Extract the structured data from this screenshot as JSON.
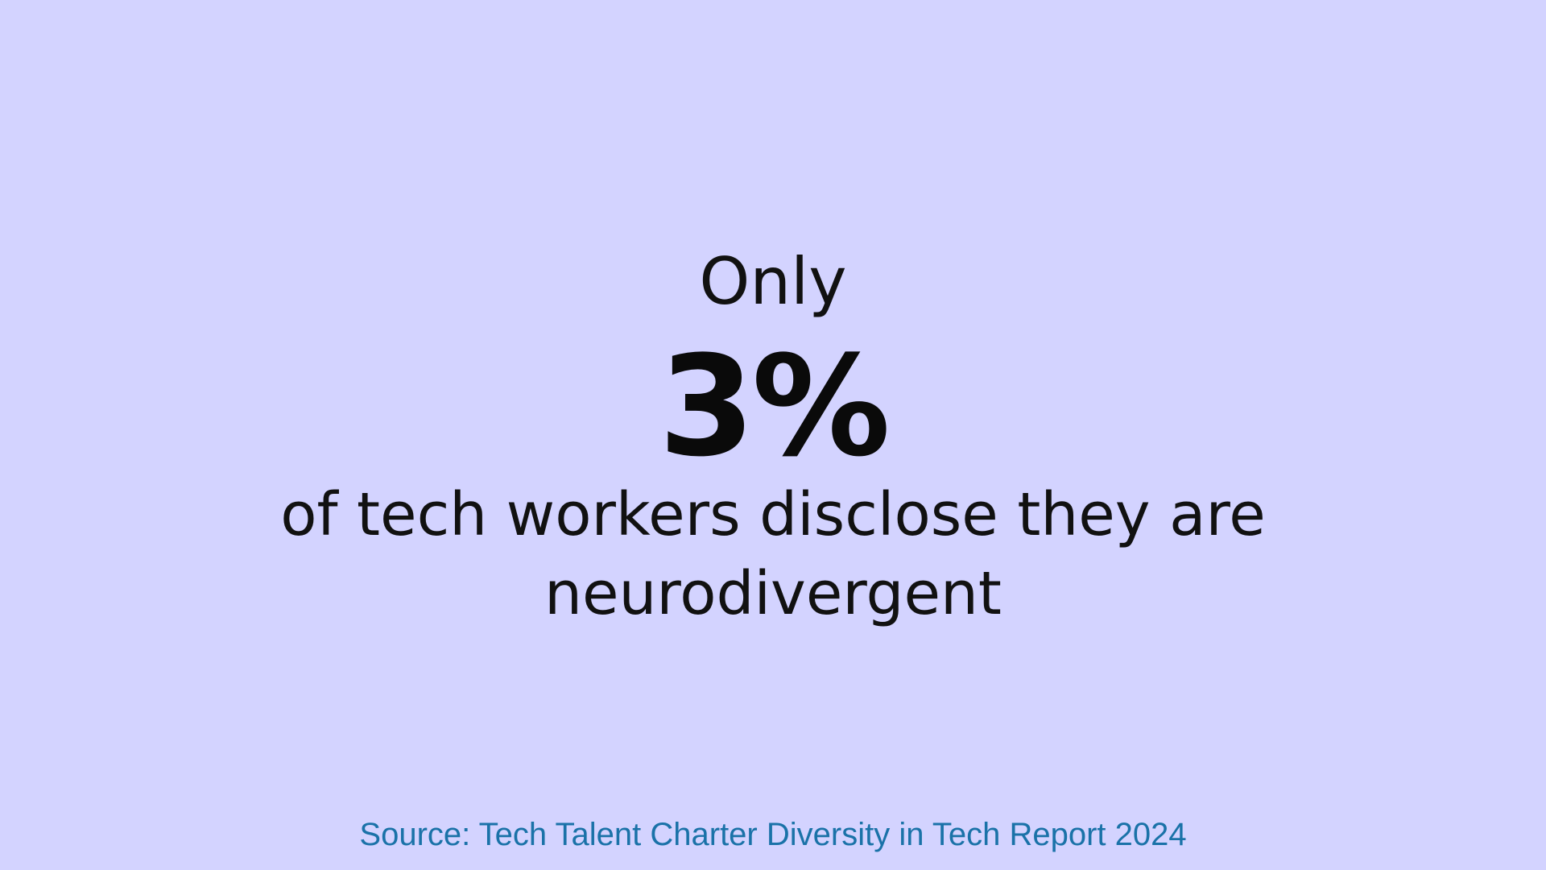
{
  "slide": {
    "prefix": "Only",
    "stat": "3%",
    "statement": "of tech workers disclose they are neurodivergent",
    "source": "Source: Tech Talent Charter Diversity in Tech Report 2024"
  },
  "colors": {
    "background": "#d3d3ff",
    "text": "#111111",
    "source": "#1a72a8"
  }
}
